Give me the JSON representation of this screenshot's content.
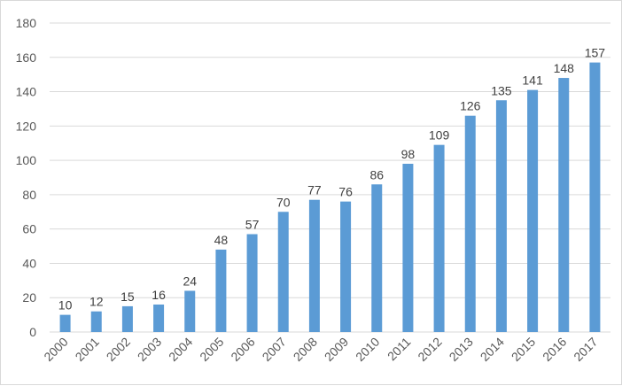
{
  "chart_data": {
    "type": "bar",
    "title": "",
    "xlabel": "",
    "ylabel": "",
    "categories": [
      "2000",
      "2001",
      "2002",
      "2003",
      "2004",
      "2005",
      "2006",
      "2007",
      "2008",
      "2009",
      "2010",
      "2011",
      "2012",
      "2013",
      "2014",
      "2015",
      "2016",
      "2017"
    ],
    "values": [
      10,
      12,
      15,
      16,
      24,
      48,
      57,
      70,
      77,
      76,
      86,
      98,
      109,
      126,
      135,
      141,
      148,
      157
    ],
    "ylim": [
      0,
      180
    ],
    "yticks": [
      0,
      20,
      40,
      60,
      80,
      100,
      120,
      140,
      160,
      180
    ],
    "grid": true,
    "legend": "none",
    "data_labels": true,
    "bar_color": "#5b9bd5"
  }
}
